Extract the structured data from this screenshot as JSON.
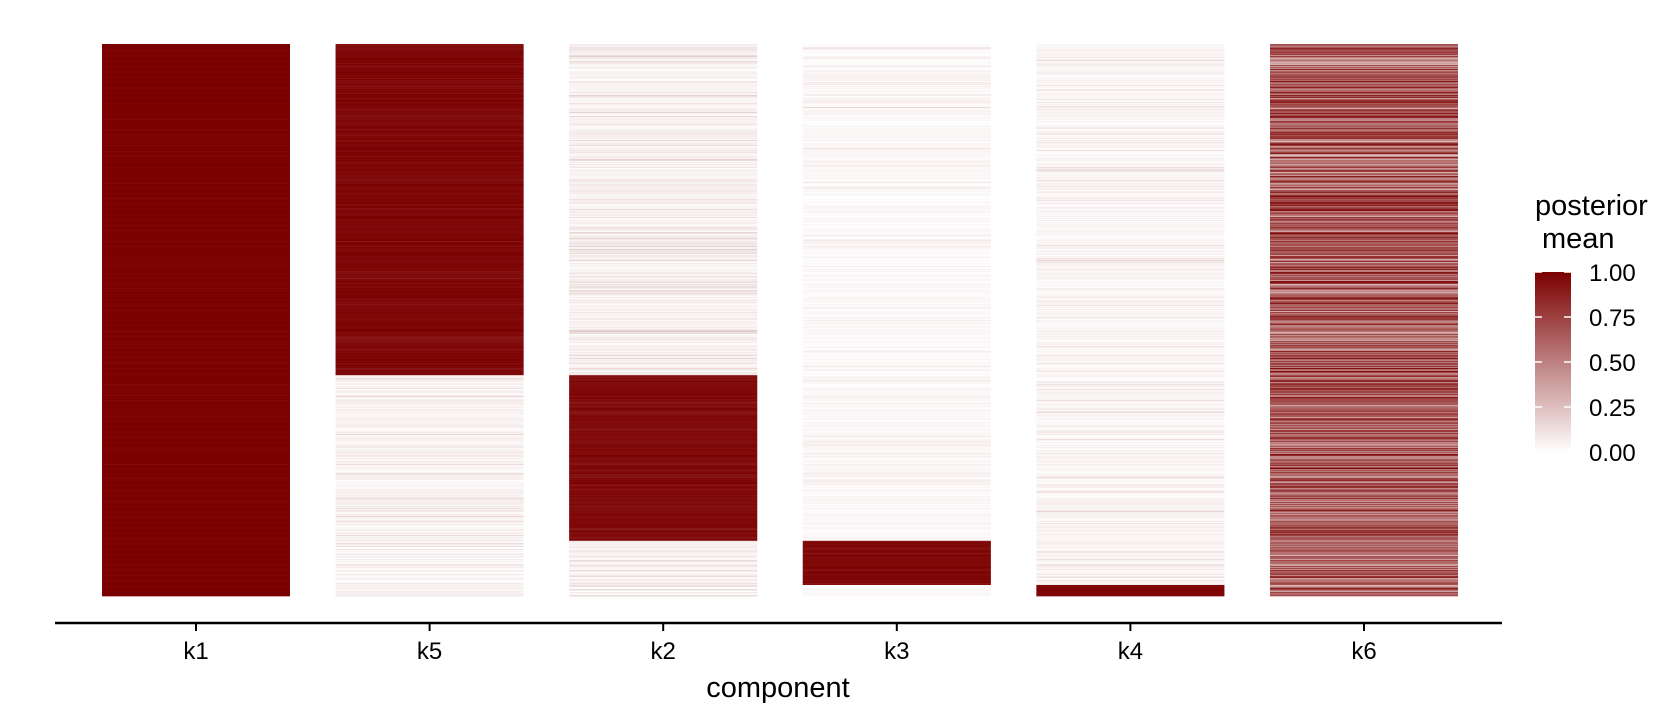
{
  "chart_data": {
    "type": "heatmap",
    "title": "",
    "xlabel": "component",
    "ylabel": "",
    "categories": [
      "k1",
      "k5",
      "k2",
      "k3",
      "k4",
      "k6"
    ],
    "n_rows": 1000,
    "y_ticks_shown": false,
    "grid": false,
    "legend": {
      "title_lines": [
        "posterior",
        "mean"
      ],
      "position": "right",
      "range": [
        0,
        1
      ],
      "ticks": [
        0.0,
        0.25,
        0.5,
        0.75,
        1.0
      ],
      "tick_labels": [
        "0.00",
        "0.25",
        "0.50",
        "0.75",
        "1.00"
      ],
      "color_low": "#ffffff",
      "color_high": "#7b0000"
    },
    "columns": [
      {
        "name": "k1",
        "segments": [
          {
            "row_start": 0,
            "row_end": 1000,
            "level": 1.0,
            "jitter": 0.02
          }
        ]
      },
      {
        "name": "k5",
        "segments": [
          {
            "row_start": 0,
            "row_end": 600,
            "level": 0.97,
            "jitter": 0.06
          },
          {
            "row_start": 600,
            "row_end": 1000,
            "level": 0.05,
            "jitter": 0.1
          }
        ]
      },
      {
        "name": "k2",
        "segments": [
          {
            "row_start": 0,
            "row_end": 600,
            "level": 0.06,
            "jitter": 0.12
          },
          {
            "row_start": 600,
            "row_end": 900,
            "level": 0.96,
            "jitter": 0.06
          },
          {
            "row_start": 900,
            "row_end": 1000,
            "level": 0.06,
            "jitter": 0.12
          }
        ]
      },
      {
        "name": "k3",
        "segments": [
          {
            "row_start": 0,
            "row_end": 900,
            "level": 0.03,
            "jitter": 0.06
          },
          {
            "row_start": 900,
            "row_end": 980,
            "level": 0.97,
            "jitter": 0.04
          },
          {
            "row_start": 980,
            "row_end": 1000,
            "level": 0.02,
            "jitter": 0.04
          }
        ]
      },
      {
        "name": "k4",
        "segments": [
          {
            "row_start": 0,
            "row_end": 980,
            "level": 0.04,
            "jitter": 0.08
          },
          {
            "row_start": 980,
            "row_end": 1000,
            "level": 0.98,
            "jitter": 0.02
          }
        ]
      },
      {
        "name": "k6",
        "segments": [
          {
            "row_start": 0,
            "row_end": 1000,
            "level": 0.55,
            "jitter": 0.45
          }
        ]
      }
    ]
  },
  "colors": {
    "axis": "#000000",
    "background": "#ffffff"
  }
}
